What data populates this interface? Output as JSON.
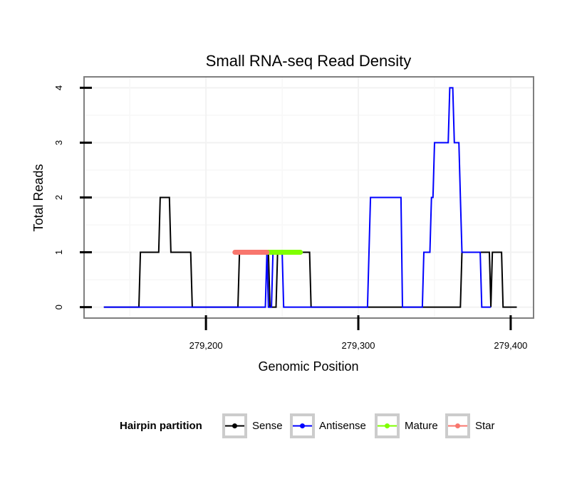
{
  "chart_data": {
    "type": "line",
    "title": "Small RNA-seq Read Density",
    "xlabel": "Genomic Position",
    "ylabel": "Total Reads",
    "xlim": [
      279120,
      279415
    ],
    "ylim": [
      -0.2,
      4.2
    ],
    "x_ticks": [
      279200,
      279300,
      279400
    ],
    "x_tick_labels": [
      "279,200",
      "279,300",
      "279,400"
    ],
    "y_ticks": [
      0,
      1,
      2,
      3,
      4
    ],
    "y_tick_labels": [
      "0",
      "1",
      "2",
      "3",
      "4"
    ],
    "grid": true,
    "legend": {
      "title": "Hairpin partition",
      "position": "bottom",
      "entries": [
        "Sense",
        "Antisense",
        "Mature",
        "Star"
      ]
    },
    "series": [
      {
        "name": "Sense",
        "color": "#000000",
        "points": [
          [
            279133,
            0
          ],
          [
            279156,
            0
          ],
          [
            279157,
            1
          ],
          [
            279169,
            1
          ],
          [
            279170,
            2
          ],
          [
            279176,
            2
          ],
          [
            279177,
            1
          ],
          [
            279190,
            1
          ],
          [
            279191,
            0
          ],
          [
            279221,
            0
          ],
          [
            279222,
            1
          ],
          [
            279241,
            1
          ],
          [
            279242,
            0
          ],
          [
            279246,
            0
          ],
          [
            279247,
            1
          ],
          [
            279268,
            1
          ],
          [
            279269,
            0
          ],
          [
            279367,
            0
          ],
          [
            279368,
            1
          ],
          [
            279386,
            1
          ],
          [
            279387,
            0
          ],
          [
            279388,
            1
          ],
          [
            279394,
            1
          ],
          [
            279395,
            0
          ],
          [
            279404,
            0
          ]
        ]
      },
      {
        "name": "Antisense",
        "color": "#0000ff",
        "points": [
          [
            279133,
            0
          ],
          [
            279239,
            0
          ],
          [
            279240,
            1
          ],
          [
            279241,
            0
          ],
          [
            279243,
            0
          ],
          [
            279244,
            1
          ],
          [
            279250,
            1
          ],
          [
            279251,
            0
          ],
          [
            279306,
            0
          ],
          [
            279308,
            2
          ],
          [
            279328,
            2
          ],
          [
            279329,
            0
          ],
          [
            279342,
            0
          ],
          [
            279343,
            1
          ],
          [
            279347,
            1
          ],
          [
            279348,
            2
          ],
          [
            279349,
            2
          ],
          [
            279350,
            3
          ],
          [
            279359,
            3
          ],
          [
            279360,
            4
          ],
          [
            279362,
            4
          ],
          [
            279363,
            3
          ],
          [
            279366,
            3
          ],
          [
            279367,
            2
          ],
          [
            279368,
            1
          ],
          [
            279380,
            1
          ],
          [
            279381,
            0
          ],
          [
            279387,
            0
          ]
        ]
      },
      {
        "name": "Mature",
        "color": "#7fff00",
        "points": [
          [
            279240,
            1
          ],
          [
            279262,
            1
          ]
        ]
      },
      {
        "name": "Star",
        "color": "#f8766d",
        "points": [
          [
            279219,
            1
          ],
          [
            279240,
            1
          ]
        ]
      }
    ]
  }
}
